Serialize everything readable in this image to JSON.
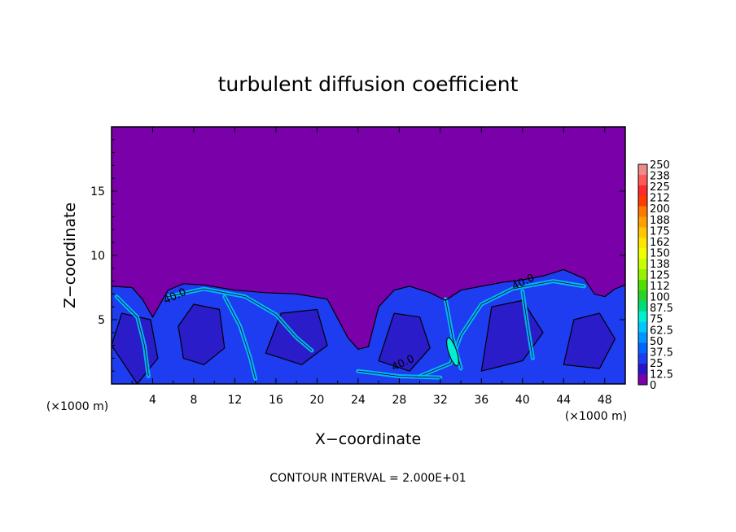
{
  "chart_data": {
    "type": "heatmap",
    "title": "turbulent diffusion coefficient",
    "xlabel": "X−coordinate",
    "ylabel": "Z−coordinate",
    "x_unit_left": "(×1000 m)",
    "x_unit_right": "(×1000 m)",
    "footer": "CONTOUR INTERVAL = 2.000E+01",
    "xlim": [
      0,
      50
    ],
    "ylim": [
      0,
      20
    ],
    "x_ticks": [
      4,
      8,
      12,
      16,
      20,
      24,
      28,
      32,
      36,
      40,
      44,
      48
    ],
    "y_ticks": [
      5,
      10,
      15
    ],
    "contour_interval": 20,
    "contour_labels": [
      {
        "text": "40.0",
        "x": 6.3,
        "z": 6.6
      },
      {
        "text": "40.0",
        "x": 40.2,
        "z": 7.7
      },
      {
        "text": "40.0",
        "x": 28.5,
        "z": 1.4
      }
    ],
    "boundary_top": [
      [
        0,
        7.6
      ],
      [
        2,
        7.5
      ],
      [
        3,
        6.6
      ],
      [
        4,
        5.2
      ],
      [
        5.5,
        7.3
      ],
      [
        7,
        7.8
      ],
      [
        9,
        7.7
      ],
      [
        12,
        7.3
      ],
      [
        15,
        7.1
      ],
      [
        18,
        7.0
      ],
      [
        21,
        6.6
      ],
      [
        23,
        3.6
      ],
      [
        24,
        2.7
      ],
      [
        25,
        2.9
      ],
      [
        26,
        6.0
      ],
      [
        27.5,
        7.3
      ],
      [
        29,
        7.6
      ],
      [
        31,
        7.1
      ],
      [
        32.5,
        6.5
      ],
      [
        34,
        7.3
      ],
      [
        36,
        7.6
      ],
      [
        38,
        7.9
      ],
      [
        40,
        8.1
      ],
      [
        42,
        8.4
      ],
      [
        44,
        8.9
      ],
      [
        46,
        8.2
      ],
      [
        47,
        7.0
      ],
      [
        48,
        6.8
      ],
      [
        49,
        7.4
      ],
      [
        50,
        7.7
      ]
    ],
    "colorbar": {
      "labels": [
        "250",
        "238",
        "225",
        "212",
        "200",
        "188",
        "175",
        "162",
        "150",
        "138",
        "125",
        "112",
        "100",
        "87.5",
        "75",
        "62.5",
        "50",
        "37.5",
        "25",
        "12.5",
        "0"
      ],
      "colors": [
        "#f08a8a",
        "#ff5a5a",
        "#ff2a2a",
        "#ff3c00",
        "#ff7800",
        "#ffa000",
        "#ffc800",
        "#ffe600",
        "#f0ff00",
        "#c8ff00",
        "#96f000",
        "#50e000",
        "#28d228",
        "#00dc78",
        "#00f0d2",
        "#00c8ff",
        "#0096ff",
        "#0064ff",
        "#1e3cf0",
        "#2814c8",
        "#7800a8"
      ]
    },
    "background_color": "#7a00aa"
  }
}
